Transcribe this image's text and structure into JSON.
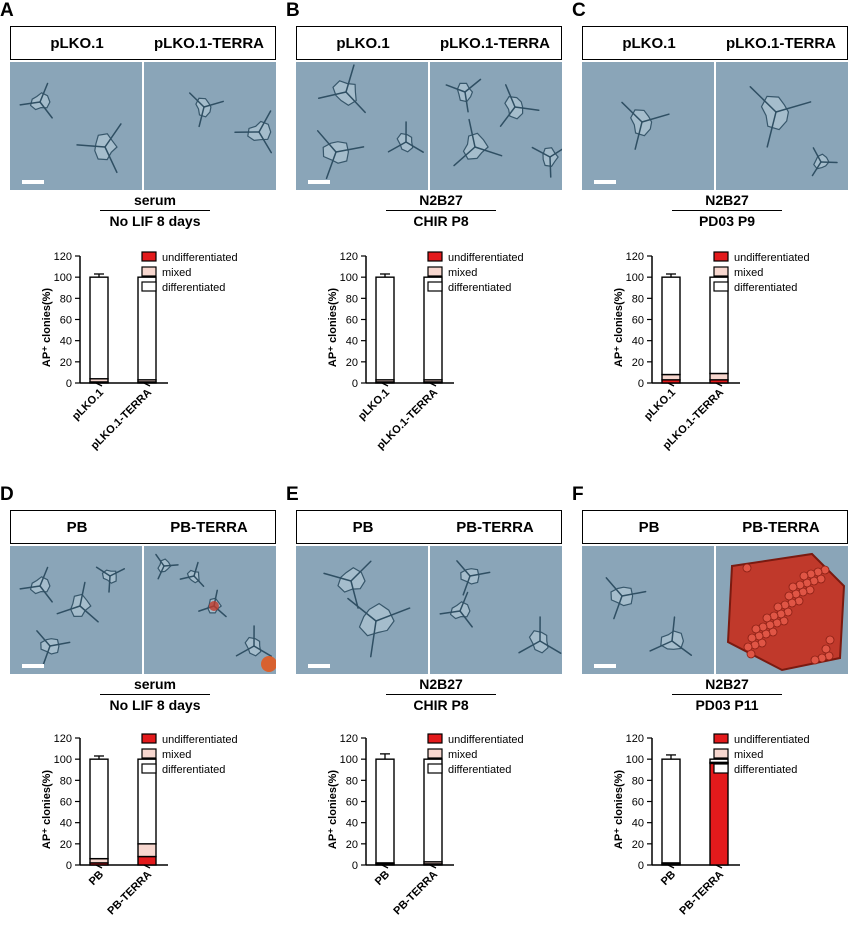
{
  "colors": {
    "undifferentiated": "#e31a1c",
    "mixed": "#f7d7cf",
    "differentiated": "#ffffff",
    "photo_bg": "#8aa5b8",
    "ap_stain": "#c0392b"
  },
  "panels": [
    {
      "letter": "A",
      "header_left": "pLKO.1",
      "header_right": "pLKO.1-TERRA",
      "condition_top": "serum",
      "condition_bottom": "No LIF 8 days",
      "chart_data": {
        "type": "bar",
        "stacked": true,
        "categories": [
          "pLKO.1",
          "pLKO.1-TERRA"
        ],
        "ylabel": "AP⁺ clonies(%)",
        "ylim": [
          0,
          120
        ],
        "yticks": [
          0,
          20,
          40,
          60,
          80,
          100,
          120
        ],
        "legend": [
          "undifferentiated",
          "mixed",
          "differentiated"
        ],
        "legend_position": "top-right",
        "series": [
          {
            "name": "undifferentiated",
            "values": [
              1,
              1
            ]
          },
          {
            "name": "mixed",
            "values": [
              3,
              2
            ]
          },
          {
            "name": "differentiated",
            "values": [
              96,
              97
            ]
          }
        ],
        "error": [
          3,
          3
        ]
      }
    },
    {
      "letter": "B",
      "header_left": "pLKO.1",
      "header_right": "pLKO.1-TERRA",
      "condition_top": "N2B27",
      "condition_bottom": "CHIR P8",
      "chart_data": {
        "type": "bar",
        "stacked": true,
        "categories": [
          "pLKO.1",
          "pLKO.1-TERRA"
        ],
        "ylabel": "AP⁺ clonies(%)",
        "ylim": [
          0,
          120
        ],
        "yticks": [
          0,
          20,
          40,
          60,
          80,
          100,
          120
        ],
        "legend": [
          "undifferentiated",
          "mixed",
          "differentiated"
        ],
        "legend_position": "top-right",
        "series": [
          {
            "name": "undifferentiated",
            "values": [
              1,
              1
            ]
          },
          {
            "name": "mixed",
            "values": [
              2,
              2
            ]
          },
          {
            "name": "differentiated",
            "values": [
              97,
              97
            ]
          }
        ],
        "error": [
          3,
          3
        ]
      }
    },
    {
      "letter": "C",
      "header_left": "pLKO.1",
      "header_right": "pLKO.1-TERRA",
      "condition_top": "N2B27",
      "condition_bottom": "PD03 P9",
      "chart_data": {
        "type": "bar",
        "stacked": true,
        "categories": [
          "pLKO.1",
          "pLKO.1-TERRA"
        ],
        "ylabel": "AP⁺ clonies(%)",
        "ylim": [
          0,
          120
        ],
        "yticks": [
          0,
          20,
          40,
          60,
          80,
          100,
          120
        ],
        "legend": [
          "undifferentiated",
          "mixed",
          "differentiated"
        ],
        "legend_position": "top-right",
        "series": [
          {
            "name": "undifferentiated",
            "values": [
              3,
              3
            ]
          },
          {
            "name": "mixed",
            "values": [
              5,
              6
            ]
          },
          {
            "name": "differentiated",
            "values": [
              92,
              91
            ]
          }
        ],
        "error": [
          3,
          3
        ]
      }
    },
    {
      "letter": "D",
      "header_left": "PB",
      "header_right": "PB-TERRA",
      "condition_top": "serum",
      "condition_bottom": "No LIF 8 days",
      "chart_data": {
        "type": "bar",
        "stacked": true,
        "categories": [
          "PB",
          "PB-TERRA"
        ],
        "ylabel": "AP⁺ clonies(%)",
        "ylim": [
          0,
          120
        ],
        "yticks": [
          0,
          20,
          40,
          60,
          80,
          100,
          120
        ],
        "legend": [
          "undifferentiated",
          "mixed",
          "differentiated"
        ],
        "legend_position": "top-right",
        "series": [
          {
            "name": "undifferentiated",
            "values": [
              2,
              8
            ]
          },
          {
            "name": "mixed",
            "values": [
              4,
              12
            ]
          },
          {
            "name": "differentiated",
            "values": [
              94,
              80
            ]
          }
        ],
        "error": [
          3,
          3
        ]
      }
    },
    {
      "letter": "E",
      "header_left": "PB",
      "header_right": "PB-TERRA",
      "condition_top": "N2B27",
      "condition_bottom": "CHIR P8",
      "chart_data": {
        "type": "bar",
        "stacked": true,
        "categories": [
          "PB",
          "PB-TERRA"
        ],
        "ylabel": "AP⁺ clonies(%)",
        "ylim": [
          0,
          120
        ],
        "yticks": [
          0,
          20,
          40,
          60,
          80,
          100,
          120
        ],
        "legend": [
          "undifferentiated",
          "mixed",
          "differentiated"
        ],
        "legend_position": "top-right",
        "series": [
          {
            "name": "undifferentiated",
            "values": [
              1,
              1
            ]
          },
          {
            "name": "mixed",
            "values": [
              1,
              2
            ]
          },
          {
            "name": "differentiated",
            "values": [
              98,
              97
            ]
          }
        ],
        "error": [
          5,
          4
        ]
      }
    },
    {
      "letter": "F",
      "header_left": "PB",
      "header_right": "PB-TERRA",
      "condition_top": "N2B27",
      "condition_bottom": "PD03 P11",
      "chart_data": {
        "type": "bar",
        "stacked": true,
        "categories": [
          "PB",
          "PB-TERRA"
        ],
        "ylabel": "AP⁺ clonies(%)",
        "ylim": [
          0,
          120
        ],
        "yticks": [
          0,
          20,
          40,
          60,
          80,
          100,
          120
        ],
        "legend": [
          "undifferentiated",
          "mixed",
          "differentiated"
        ],
        "legend_position": "top-right",
        "series": [
          {
            "name": "undifferentiated",
            "values": [
              1,
              96
            ]
          },
          {
            "name": "mixed",
            "values": [
              1,
              1
            ]
          },
          {
            "name": "differentiated",
            "values": [
              98,
              3
            ]
          }
        ],
        "error": [
          4,
          5
        ]
      }
    }
  ]
}
